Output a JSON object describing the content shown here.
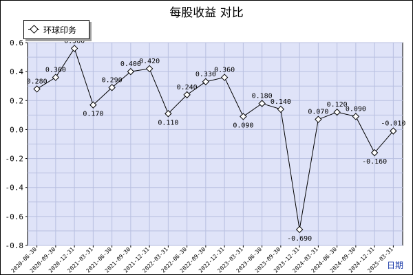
{
  "chart_data": {
    "type": "line",
    "title": "每股收益  对比",
    "xlabel": "日期",
    "ylabel": "",
    "ylim": [
      -0.8,
      0.6
    ],
    "y_ticks": [
      "0.6",
      "0.4",
      "0.2",
      "0.0",
      "-0.2",
      "-0.4",
      "-0.6",
      "-0.8"
    ],
    "grid": true,
    "legend": "top-left",
    "categories": [
      "2020-06-30",
      "2020-09-30",
      "2020-12-31",
      "2021-03-31",
      "2021-06-30",
      "2021-09-30",
      "2021-12-31",
      "2022-03-31",
      "2022-06-30",
      "2022-09-30",
      "2022-12-31",
      "2023-03-31",
      "2023-06-30",
      "2023-09-30",
      "2023-12-31",
      "2024-03-31",
      "2024-06-30",
      "2024-09-30",
      "2024-12-31",
      "2025-03-31"
    ],
    "series": [
      {
        "name": "环球印务",
        "values": [
          0.28,
          0.36,
          0.56,
          0.17,
          0.29,
          0.4,
          0.42,
          0.11,
          0.24,
          0.33,
          0.36,
          0.09,
          0.18,
          0.14,
          -0.69,
          0.07,
          0.12,
          0.09,
          -0.16,
          -0.01
        ],
        "labels": [
          "0.280",
          "0.360",
          "0.560",
          "0.170",
          "0.290",
          "0.400",
          "0.420",
          "0.110",
          "0.240",
          "0.330",
          "0.360",
          "0.090",
          "0.180",
          "0.140",
          "-0.690",
          "0.070",
          "0.120",
          "0.090",
          "-0.160",
          "-0.010"
        ]
      }
    ],
    "colors": {
      "plot_bg": "#dfe3f8",
      "grid": "#b8bfe0",
      "line": "#000000",
      "marker_fill": "#ffffff"
    }
  }
}
